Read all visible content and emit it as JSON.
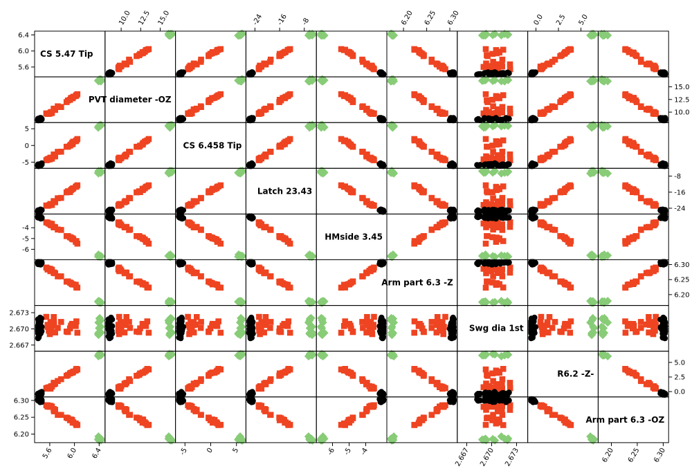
{
  "chart_data": {
    "type": "scatter",
    "kind": "scatter-matrix",
    "variables": [
      {
        "name": "CS 5.47 Tip",
        "range": [
          5.4,
          6.45
        ],
        "ticks": [
          5.6,
          6.0,
          6.4
        ],
        "tick_labels": [
          "5.6",
          "6.0",
          "6.4"
        ]
      },
      {
        "name": "PVT diameter -OZ",
        "range": [
          8.3,
          16.6
        ],
        "ticks": [
          10.0,
          12.5,
          15.0
        ],
        "tick_labels": [
          "10.0",
          "12.5",
          "15.0"
        ]
      },
      {
        "name": "CS 6.458 Tip",
        "range": [
          -6.3,
          6.3
        ],
        "ticks": [
          -5,
          0,
          5
        ],
        "tick_labels": [
          "-5",
          "0",
          "5"
        ]
      },
      {
        "name": "Latch 23.43",
        "range": [
          -26,
          -5
        ],
        "ticks": [
          -24,
          -16,
          -8
        ],
        "tick_labels": [
          "-24",
          "-16",
          "-8"
        ]
      },
      {
        "name": "HMside 3.45",
        "range": [
          -6.8,
          -2.9
        ],
        "ticks": [
          -6,
          -5,
          -4
        ],
        "tick_labels": [
          "-6",
          "-5",
          "-4"
        ]
      },
      {
        "name": "Arm part 6.3 -Z",
        "range": [
          6.17,
          6.31
        ],
        "ticks": [
          6.2,
          6.25,
          6.3
        ],
        "tick_labels": [
          "6.20",
          "6.25",
          "6.30"
        ]
      },
      {
        "name": "Swg dia 1st",
        "range": [
          2.6662,
          2.674
        ],
        "ticks": [
          2.667,
          2.67,
          2.673
        ],
        "tick_labels": [
          "2.667",
          "2.670",
          "2.673"
        ]
      },
      {
        "name": "R6.2 -Z-",
        "range": [
          -0.6,
          6.6
        ],
        "ticks": [
          0.0,
          2.5,
          5.0
        ],
        "tick_labels": [
          "0.0",
          "2.5",
          "5.0"
        ]
      },
      {
        "name": "Arm part 6.3 -OZ",
        "range": [
          6.18,
          6.305
        ],
        "ticks": [
          6.2,
          6.25,
          6.3
        ],
        "tick_labels": [
          "6.20",
          "6.25",
          "6.30"
        ]
      }
    ],
    "groups": [
      {
        "marker": "circle",
        "color": "#000000",
        "position": 0.03,
        "count": 45
      },
      {
        "marker": "square",
        "color": "#ee4422",
        "position": 0.38,
        "count": 26
      },
      {
        "marker": "diamond",
        "color": "#88cc77",
        "position": 0.96,
        "count": 10
      }
    ],
    "axes": {
      "top": [
        1,
        3,
        5,
        7
      ],
      "bottom": [
        0,
        2,
        4,
        6,
        8
      ],
      "left": [
        0,
        2,
        4,
        6,
        8
      ],
      "right": [
        1,
        3,
        5,
        7
      ]
    },
    "grid": false,
    "legend": "none"
  }
}
